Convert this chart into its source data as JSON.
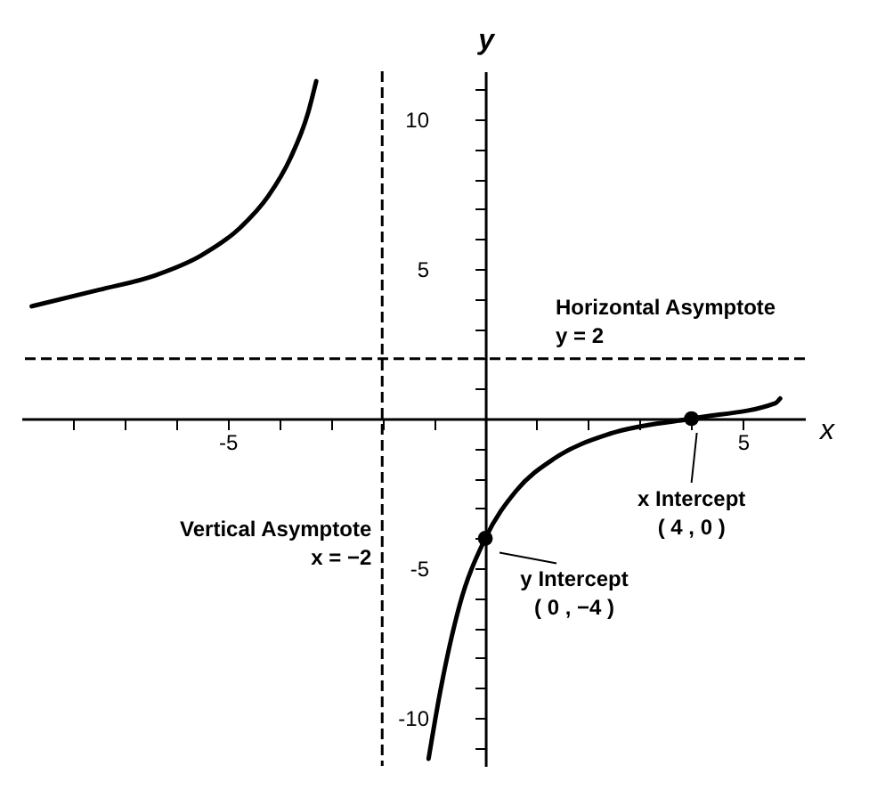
{
  "chart_data": {
    "type": "line",
    "xlabel": "x",
    "ylabel": "y",
    "xlim": [
      -9,
      6.2
    ],
    "ylim": [
      -11.6,
      11.6
    ],
    "xticks": [
      {
        "value": -8,
        "label": null
      },
      {
        "value": -7,
        "label": null
      },
      {
        "value": -6,
        "label": null
      },
      -5,
      {
        "value": -4,
        "label": null
      },
      {
        "value": -3,
        "label": null
      },
      {
        "value": -2,
        "label": null
      },
      {
        "value": -1,
        "label": null
      },
      {
        "value": 1,
        "label": null
      },
      {
        "value": 2,
        "label": null
      },
      {
        "value": 3,
        "label": null
      },
      {
        "value": 4,
        "label": null
      },
      5
    ],
    "yticks": [
      {
        "value": -11,
        "label": null
      },
      -10,
      {
        "value": -9,
        "label": null
      },
      {
        "value": -8,
        "label": null
      },
      {
        "value": -7,
        "label": null
      },
      {
        "value": -6,
        "label": null
      },
      -5,
      {
        "value": -4,
        "label": null
      },
      {
        "value": -3,
        "label": null
      },
      {
        "value": -2,
        "label": null
      },
      {
        "value": -1,
        "label": null
      },
      {
        "value": 1,
        "label": null
      },
      {
        "value": 2,
        "label": null
      },
      {
        "value": 3,
        "label": null
      },
      {
        "value": 4,
        "label": null
      },
      5,
      {
        "value": 6,
        "label": null
      },
      {
        "value": 7,
        "label": null
      },
      {
        "value": 8,
        "label": null
      },
      {
        "value": 9,
        "label": null
      },
      10,
      {
        "value": 11,
        "label": null
      }
    ],
    "grid": false,
    "line_style": "solid",
    "series": [
      {
        "type": "line",
        "color": "#000000",
        "x": [
          -8.8,
          -7.49,
          -6.41,
          -5.52,
          -4.77,
          -4.21,
          -3.78,
          -3.44,
          -3.28
        ],
        "values": [
          3.75,
          4.3,
          4.78,
          5.44,
          6.35,
          7.43,
          8.7,
          10.2,
          11.27
        ]
      },
      {
        "type": "line",
        "color": "#000000",
        "x": [
          -1.1,
          -0.88,
          -0.5,
          0,
          0.6,
          1.36,
          2.45,
          4,
          5.62,
          5.72
        ],
        "values": [
          -11.36,
          -9.17,
          -6.24,
          -4,
          -2.41,
          -1.31,
          -0.49,
          0,
          0.51,
          0.67
        ]
      },
      {
        "type": "scatter",
        "color": "#000000",
        "x": [
          0,
          4
        ],
        "values": [
          -4,
          0
        ]
      }
    ],
    "ref_lines": [
      {
        "axis": "y",
        "value": 2,
        "label": "Horizontal Asymptote\ny = 2",
        "line_style": "dashed",
        "color": "#000000"
      },
      {
        "axis": "x",
        "value": -2,
        "label": "Vertical Asymptote\nx = −2",
        "line_style": "dashed",
        "color": "#000000"
      }
    ],
    "annotations": [
      {
        "text": "x Intercept\n( 4 , 0 )",
        "x": 4,
        "y": 0
      },
      {
        "text": "y Intercept\n( 0 , −4 )",
        "x": 0,
        "y": -4
      }
    ]
  }
}
